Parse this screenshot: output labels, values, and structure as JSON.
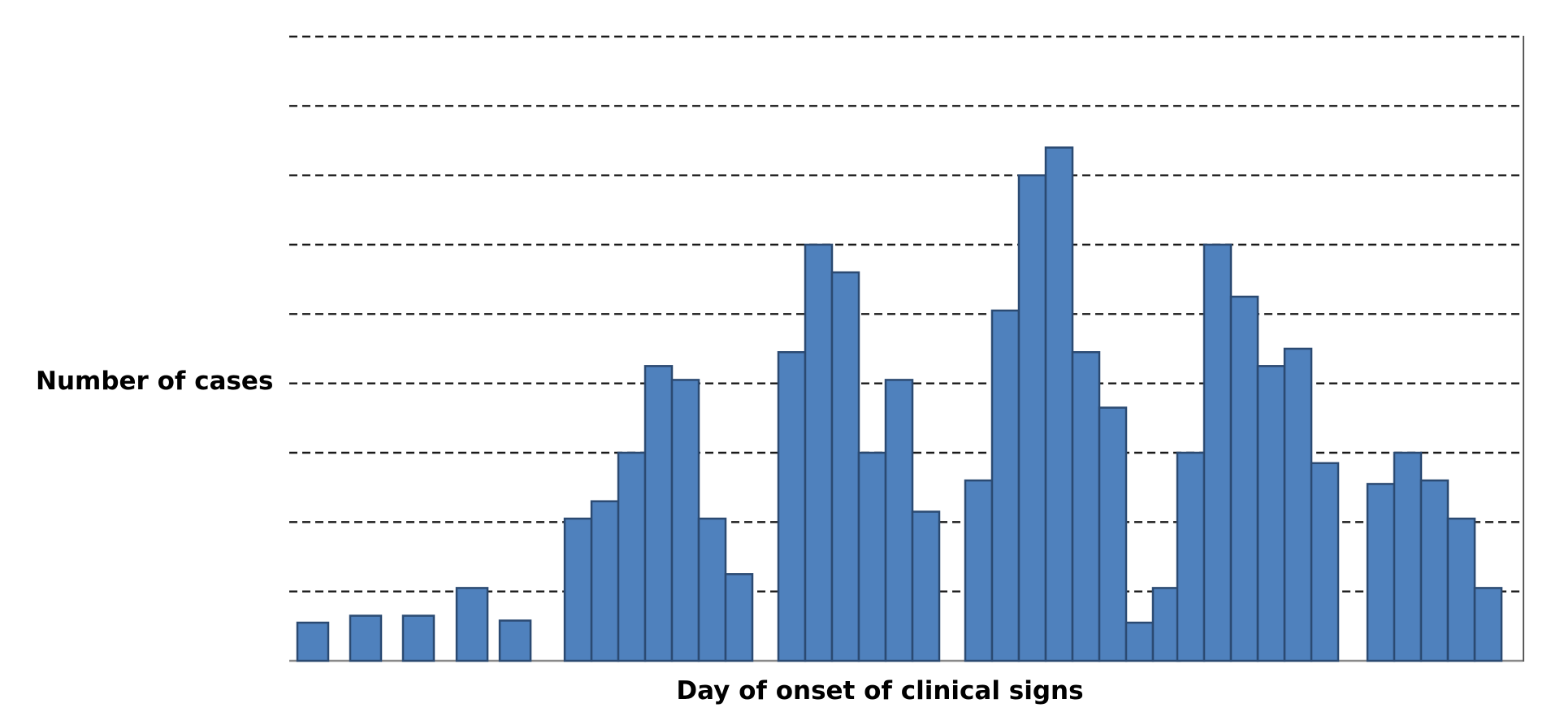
{
  "chart_data": {
    "type": "bar",
    "title": "",
    "xlabel": "Day of onset of clinical signs",
    "ylabel": "Number of cases",
    "ylim": [
      0,
      9
    ],
    "grid": true,
    "grid_style": "dashed",
    "legend": "none",
    "bar_color": "#4f81bd",
    "bar_edge_color": "#2b4a72",
    "series": [
      {
        "values": [
          0.55,
          0.65,
          0.65,
          1.05,
          0.58,
          2.05,
          2.3,
          3.0,
          4.25,
          4.05,
          2.05,
          1.25,
          4.45,
          6.0,
          5.6,
          3.0,
          4.05,
          2.15,
          2.6,
          5.05,
          7.0,
          7.4,
          4.45,
          3.65,
          0.55,
          1.05,
          3.0,
          6.0,
          5.25,
          4.25,
          4.5,
          2.85,
          2.55,
          3.0,
          2.6,
          2.05,
          1.05
        ]
      }
    ]
  }
}
